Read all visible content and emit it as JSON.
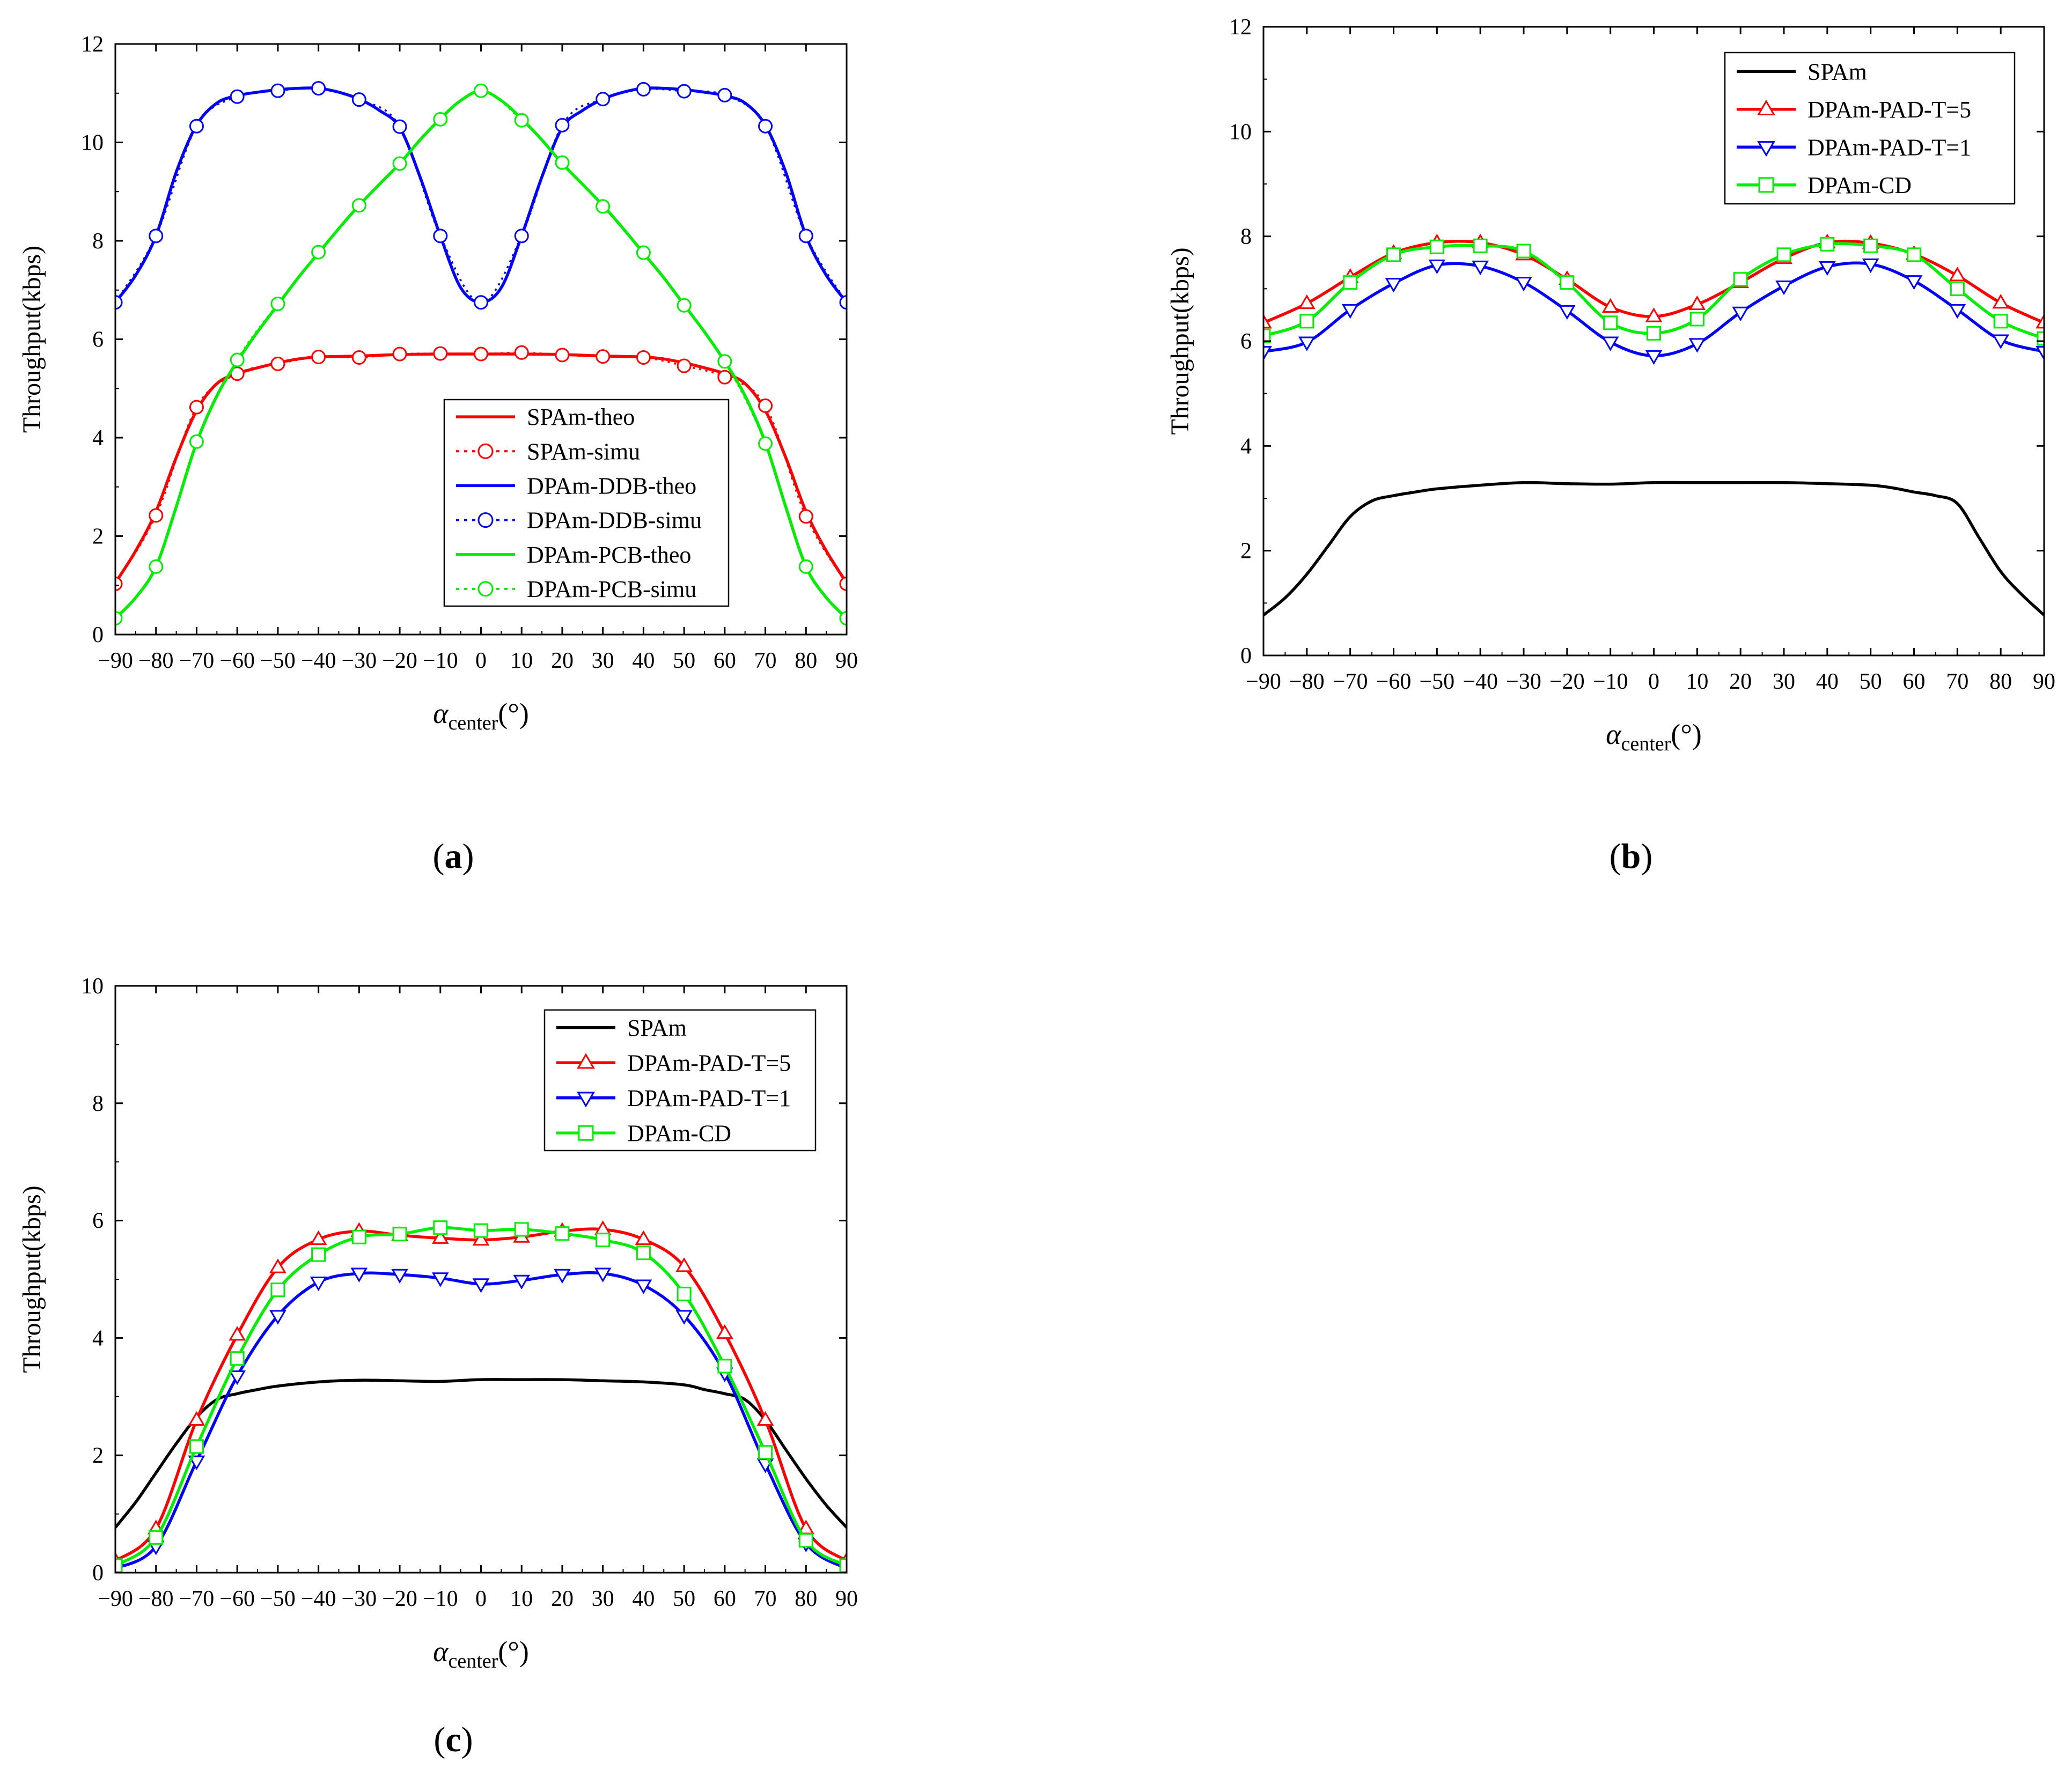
{
  "colors": {
    "red": "#ff0000",
    "blue": "#0000ff",
    "green": "#00ee00",
    "black": "#000000"
  },
  "chart_data": [
    {
      "id": "a",
      "type": "line",
      "panel_label": "a",
      "xlabel_main": "α",
      "xlabel_sub": "center",
      "xlabel_unit": "(°)",
      "ylabel": "Throughput(kbps)",
      "xlim": [
        -90,
        90
      ],
      "ylim": [
        0,
        12
      ],
      "xticks": [
        "−90",
        "−80",
        "−70",
        "−60",
        "−50",
        "−40",
        "−30",
        "−20",
        "−10",
        "0",
        "10",
        "20",
        "30",
        "40",
        "50",
        "60",
        "70",
        "80",
        "90"
      ],
      "yticks": [
        "0",
        "2",
        "4",
        "6",
        "8",
        "10",
        "12"
      ],
      "legend_position": "center-right",
      "legend_rows": [
        {
          "label": "SPAm-theo",
          "color": "red",
          "dash": false,
          "marker": "none"
        },
        {
          "label": "SPAm-simu",
          "color": "red",
          "dash": true,
          "marker": "circle"
        },
        {
          "label": "DPAm-DDB-theo",
          "color": "blue",
          "dash": false,
          "marker": "none"
        },
        {
          "label": "DPAm-DDB-simu",
          "color": "blue",
          "dash": true,
          "marker": "circle"
        },
        {
          "label": "DPAm-PCB-theo",
          "color": "green",
          "dash": false,
          "marker": "none"
        },
        {
          "label": "DPAm-PCB-simu",
          "color": "green",
          "dash": true,
          "marker": "circle"
        }
      ],
      "series": [
        {
          "name": "SPAm-theo",
          "color": "red",
          "marker": "none",
          "x": [
            -90,
            -85,
            -80,
            -75,
            -70,
            -65,
            -60,
            -55,
            -50,
            -45,
            -40,
            -30,
            -20,
            -10,
            0,
            10,
            20,
            30,
            40,
            45,
            50,
            55,
            60,
            65,
            70,
            75,
            80,
            85,
            90
          ],
          "y": [
            1.05,
            1.7,
            2.5,
            3.6,
            4.55,
            5.1,
            5.3,
            5.42,
            5.52,
            5.6,
            5.64,
            5.66,
            5.69,
            5.7,
            5.7,
            5.7,
            5.69,
            5.66,
            5.64,
            5.6,
            5.52,
            5.42,
            5.3,
            5.1,
            4.55,
            3.6,
            2.5,
            1.7,
            1.05
          ]
        },
        {
          "name": "SPAm-simu",
          "color": "red",
          "marker": "circle",
          "x": [
            -90,
            -80,
            -70,
            -60,
            -50,
            -40,
            -30,
            -20,
            -10,
            0,
            10,
            20,
            30,
            40,
            50,
            60,
            70,
            80,
            90
          ],
          "y": [
            1.03,
            2.42,
            4.62,
            5.3,
            5.5,
            5.64,
            5.63,
            5.7,
            5.71,
            5.7,
            5.73,
            5.68,
            5.65,
            5.63,
            5.46,
            5.23,
            4.65,
            2.4,
            1.03
          ]
        },
        {
          "name": "DPAm-DDB-theo",
          "color": "blue",
          "marker": "none",
          "x": [
            -90,
            -85,
            -80,
            -75,
            -70,
            -65,
            -60,
            -55,
            -50,
            -45,
            -40,
            -35,
            -30,
            -25,
            -20,
            -15,
            -10,
            -5,
            0,
            5,
            10,
            15,
            20,
            25,
            30,
            35,
            40,
            45,
            50,
            55,
            60,
            65,
            70,
            75,
            80,
            85,
            90
          ],
          "y": [
            6.75,
            7.3,
            8.1,
            9.4,
            10.35,
            10.8,
            10.95,
            11.02,
            11.07,
            11.1,
            11.1,
            11.02,
            10.88,
            10.65,
            10.3,
            9.3,
            8.1,
            7.05,
            6.75,
            7.05,
            8.1,
            9.3,
            10.3,
            10.65,
            10.88,
            11.02,
            11.1,
            11.1,
            11.07,
            11.02,
            10.95,
            10.8,
            10.35,
            9.4,
            8.1,
            7.3,
            6.75
          ]
        },
        {
          "name": "DPAm-DDB-simu",
          "color": "blue",
          "marker": "circle",
          "x": [
            -90,
            -80,
            -70,
            -60,
            -50,
            -40,
            -30,
            -20,
            -10,
            0,
            10,
            20,
            30,
            40,
            50,
            60,
            70,
            80,
            90
          ],
          "y": [
            6.75,
            8.1,
            10.33,
            10.93,
            11.05,
            11.1,
            10.87,
            10.32,
            8.1,
            6.75,
            8.1,
            10.35,
            10.88,
            11.08,
            11.04,
            10.96,
            10.33,
            8.1,
            6.75
          ]
        },
        {
          "name": "DPAm-PCB-theo",
          "color": "green",
          "marker": "none",
          "x": [
            -90,
            -85,
            -80,
            -75,
            -70,
            -65,
            -60,
            -55,
            -50,
            -45,
            -40,
            -35,
            -30,
            -25,
            -20,
            -15,
            -10,
            -5,
            0,
            5,
            10,
            15,
            20,
            25,
            30,
            35,
            40,
            45,
            50,
            55,
            60,
            65,
            70,
            75,
            80,
            85,
            90
          ],
          "y": [
            0.33,
            0.75,
            1.38,
            2.6,
            3.9,
            4.85,
            5.55,
            6.15,
            6.7,
            7.25,
            7.75,
            8.25,
            8.72,
            9.15,
            9.57,
            10.05,
            10.48,
            10.85,
            11.05,
            10.85,
            10.48,
            10.05,
            9.57,
            9.15,
            8.72,
            8.25,
            7.75,
            7.25,
            6.7,
            6.15,
            5.55,
            4.85,
            3.9,
            2.6,
            1.38,
            0.75,
            0.33
          ]
        },
        {
          "name": "DPAm-PCB-simu",
          "color": "green",
          "marker": "circle",
          "x": [
            -90,
            -80,
            -70,
            -60,
            -50,
            -40,
            -30,
            -20,
            -10,
            0,
            10,
            20,
            30,
            40,
            50,
            60,
            70,
            80,
            90
          ],
          "y": [
            0.33,
            1.38,
            3.92,
            5.58,
            6.72,
            7.77,
            8.72,
            9.57,
            10.47,
            11.05,
            10.45,
            9.59,
            8.7,
            7.76,
            6.69,
            5.55,
            3.88,
            1.38,
            0.33
          ]
        }
      ]
    },
    {
      "id": "b",
      "type": "line",
      "panel_label": "b",
      "xlabel_main": "α",
      "xlabel_sub": "center",
      "xlabel_unit": "(°)",
      "ylabel": "Throughput(kbps)",
      "xlim": [
        -90,
        90
      ],
      "ylim": [
        0,
        12
      ],
      "xticks": [
        "−90",
        "−80",
        "−70",
        "−60",
        "−50",
        "−40",
        "−30",
        "−20",
        "−10",
        "0",
        "10",
        "20",
        "30",
        "40",
        "50",
        "60",
        "70",
        "80",
        "90"
      ],
      "yticks": [
        "0",
        "2",
        "4",
        "6",
        "8",
        "10",
        "12"
      ],
      "legend_position": "top-right",
      "legend_rows": [
        {
          "label": "SPAm",
          "color": "black",
          "dash": false,
          "marker": "none"
        },
        {
          "label": "DPAm-PAD-T=5",
          "color": "red",
          "dash": false,
          "marker": "triangle-up"
        },
        {
          "label": "DPAm-PAD-T=1",
          "color": "blue",
          "dash": false,
          "marker": "triangle-down"
        },
        {
          "label": "DPAm-CD",
          "color": "green",
          "dash": false,
          "marker": "square"
        }
      ],
      "series": [
        {
          "name": "SPAm",
          "color": "black",
          "marker": "none",
          "x": [
            -90,
            -85,
            -80,
            -75,
            -70,
            -65,
            -60,
            -55,
            -50,
            -40,
            -30,
            -20,
            -10,
            0,
            10,
            20,
            30,
            40,
            50,
            55,
            60,
            65,
            70,
            75,
            80,
            85,
            90
          ],
          "y": [
            0.77,
            1.1,
            1.55,
            2.1,
            2.65,
            2.95,
            3.05,
            3.12,
            3.18,
            3.25,
            3.3,
            3.28,
            3.27,
            3.3,
            3.3,
            3.3,
            3.3,
            3.28,
            3.25,
            3.2,
            3.12,
            3.05,
            2.9,
            2.25,
            1.6,
            1.15,
            0.77
          ]
        },
        {
          "name": "DPAm-PAD-T=5",
          "color": "red",
          "marker": "triangle-up",
          "x": [
            -90,
            -80,
            -70,
            -60,
            -50,
            -40,
            -30,
            -20,
            -10,
            0,
            10,
            20,
            30,
            40,
            50,
            60,
            70,
            80,
            90
          ],
          "y": [
            6.35,
            6.72,
            7.22,
            7.68,
            7.88,
            7.88,
            7.65,
            7.18,
            6.65,
            6.47,
            6.7,
            7.12,
            7.58,
            7.88,
            7.87,
            7.66,
            7.25,
            6.73,
            6.35
          ]
        },
        {
          "name": "DPAm-PAD-T=1",
          "color": "blue",
          "marker": "triangle-down",
          "x": [
            -90,
            -80,
            -70,
            -60,
            -50,
            -40,
            -30,
            -20,
            -10,
            0,
            10,
            20,
            30,
            40,
            50,
            60,
            70,
            80,
            90
          ],
          "y": [
            5.8,
            5.98,
            6.6,
            7.1,
            7.45,
            7.43,
            7.12,
            6.58,
            5.98,
            5.72,
            5.95,
            6.55,
            7.05,
            7.42,
            7.47,
            7.15,
            6.6,
            6.02,
            5.8
          ]
        },
        {
          "name": "DPAm-CD",
          "color": "green",
          "marker": "square",
          "x": [
            -90,
            -80,
            -70,
            -60,
            -50,
            -40,
            -30,
            -20,
            -10,
            0,
            10,
            20,
            30,
            40,
            50,
            60,
            70,
            80,
            90
          ],
          "y": [
            6.1,
            6.38,
            7.12,
            7.65,
            7.8,
            7.82,
            7.72,
            7.12,
            6.35,
            6.15,
            6.42,
            7.18,
            7.65,
            7.85,
            7.82,
            7.65,
            7.0,
            6.38,
            6.05
          ]
        }
      ]
    },
    {
      "id": "c",
      "type": "line",
      "panel_label": "c",
      "xlabel_main": "α",
      "xlabel_sub": "center",
      "xlabel_unit": "(°)",
      "ylabel": "Throughput(kbps)",
      "xlim": [
        -90,
        90
      ],
      "ylim": [
        0,
        10
      ],
      "xticks": [
        "−90",
        "−80",
        "−70",
        "−60",
        "−50",
        "−40",
        "−30",
        "−20",
        "−10",
        "0",
        "10",
        "20",
        "30",
        "40",
        "50",
        "60",
        "70",
        "80",
        "90"
      ],
      "yticks": [
        "0",
        "2",
        "4",
        "6",
        "8",
        "10"
      ],
      "legend_position": "top-right",
      "legend_rows": [
        {
          "label": "SPAm",
          "color": "black",
          "dash": false,
          "marker": "none"
        },
        {
          "label": "DPAm-PAD-T=5",
          "color": "red",
          "dash": false,
          "marker": "triangle-up"
        },
        {
          "label": "DPAm-PAD-T=1",
          "color": "blue",
          "dash": false,
          "marker": "triangle-down"
        },
        {
          "label": "DPAm-CD",
          "color": "green",
          "dash": false,
          "marker": "square"
        }
      ],
      "series": [
        {
          "name": "SPAm",
          "color": "black",
          "marker": "none",
          "x": [
            -90,
            -85,
            -80,
            -75,
            -70,
            -65,
            -60,
            -55,
            -50,
            -40,
            -30,
            -20,
            -10,
            0,
            10,
            20,
            30,
            40,
            50,
            55,
            60,
            65,
            70,
            75,
            80,
            85,
            90
          ],
          "y": [
            0.77,
            1.2,
            1.7,
            2.2,
            2.65,
            2.95,
            3.05,
            3.12,
            3.18,
            3.25,
            3.28,
            3.27,
            3.26,
            3.29,
            3.29,
            3.29,
            3.27,
            3.25,
            3.2,
            3.12,
            3.05,
            2.95,
            2.6,
            2.1,
            1.6,
            1.15,
            0.77
          ]
        },
        {
          "name": "DPAm-PAD-T=5",
          "color": "red",
          "marker": "triangle-up",
          "x": [
            -90,
            -80,
            -70,
            -60,
            -50,
            -40,
            -30,
            -20,
            -10,
            0,
            10,
            20,
            30,
            40,
            50,
            60,
            70,
            80,
            90
          ],
          "y": [
            0.2,
            0.75,
            2.6,
            4.05,
            5.2,
            5.68,
            5.82,
            5.75,
            5.7,
            5.67,
            5.72,
            5.82,
            5.85,
            5.68,
            5.22,
            4.08,
            2.6,
            0.75,
            0.2
          ]
        },
        {
          "name": "DPAm-PAD-T=1",
          "color": "blue",
          "marker": "triangle-down",
          "x": [
            -90,
            -80,
            -70,
            -60,
            -50,
            -40,
            -30,
            -20,
            -10,
            0,
            10,
            20,
            30,
            40,
            50,
            60,
            70,
            80,
            90
          ],
          "y": [
            0.07,
            0.45,
            1.9,
            3.35,
            4.38,
            4.95,
            5.1,
            5.08,
            5.02,
            4.92,
            4.98,
            5.08,
            5.1,
            4.9,
            4.38,
            3.4,
            1.85,
            0.5,
            0.07
          ]
        },
        {
          "name": "DPAm-CD",
          "color": "green",
          "marker": "square",
          "x": [
            -90,
            -80,
            -70,
            -60,
            -50,
            -40,
            -30,
            -20,
            -10,
            0,
            10,
            20,
            30,
            40,
            50,
            60,
            70,
            80,
            90
          ],
          "y": [
            0.12,
            0.6,
            2.15,
            3.65,
            4.82,
            5.42,
            5.72,
            5.77,
            5.88,
            5.83,
            5.85,
            5.78,
            5.67,
            5.45,
            4.75,
            3.52,
            2.05,
            0.55,
            0.12
          ]
        }
      ]
    }
  ]
}
